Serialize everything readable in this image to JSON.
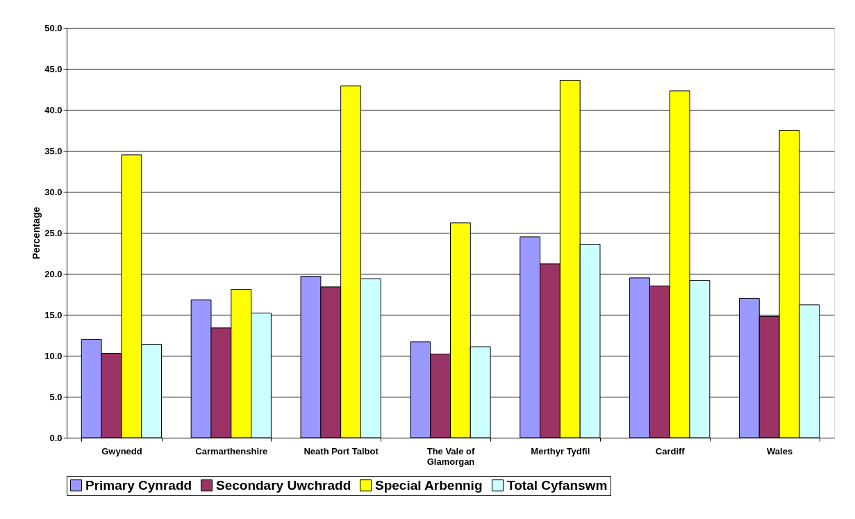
{
  "chart_data": {
    "type": "bar",
    "ylabel": "Percentage",
    "categories": [
      "Gwynedd",
      "Carmarthenshire",
      "Neath Port Talbot",
      "The Vale of Glamorgan",
      "Merthyr Tydfil",
      "Cardiff",
      "Wales"
    ],
    "series": [
      {
        "name": "Primary Cynradd",
        "color": "#9999ff",
        "values": [
          12.0,
          16.8,
          19.7,
          11.7,
          24.5,
          19.5,
          17.0
        ]
      },
      {
        "name": "Secondary Uwchradd",
        "color": "#993366",
        "values": [
          10.3,
          13.4,
          18.4,
          10.2,
          21.2,
          18.5,
          14.8
        ]
      },
      {
        "name": "Special Arbennig",
        "color": "#ffff00",
        "values": [
          34.5,
          18.1,
          42.9,
          26.2,
          43.6,
          42.3,
          37.5
        ]
      },
      {
        "name": "Total Cyfanswm",
        "color": "#ccffff",
        "values": [
          11.4,
          15.2,
          19.4,
          11.1,
          23.6,
          19.2,
          16.2
        ]
      }
    ],
    "ylim": [
      0,
      50
    ],
    "yticks": [
      {
        "value": 0,
        "label": "0.0"
      },
      {
        "value": 5,
        "label": "5.0"
      },
      {
        "value": 10,
        "label": "10.0"
      },
      {
        "value": 15,
        "label": "15.0"
      },
      {
        "value": 20,
        "label": "20.0"
      },
      {
        "value": 25,
        "label": "25.0"
      },
      {
        "value": 30,
        "label": "30.0"
      },
      {
        "value": 35,
        "label": "35.0"
      },
      {
        "value": 40,
        "label": "40.0"
      },
      {
        "value": 45,
        "label": "45.0"
      },
      {
        "value": 50,
        "label": "50.0"
      }
    ],
    "grid": "y",
    "legend": "bottom"
  }
}
